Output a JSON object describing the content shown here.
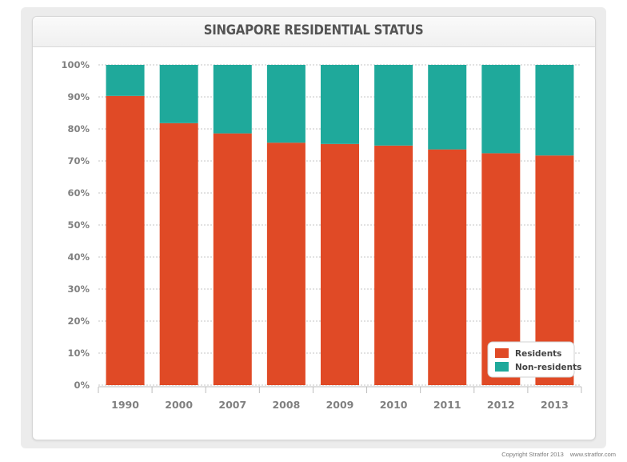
{
  "chart_data": {
    "type": "bar",
    "stacked": true,
    "title": "SINGAPORE RESIDENTIAL STATUS",
    "categories": [
      "1990",
      "2000",
      "2007",
      "2008",
      "2009",
      "2010",
      "2011",
      "2012",
      "2013"
    ],
    "series": [
      {
        "name": "Residents",
        "color": "#e04a26",
        "values": [
          90.3,
          81.8,
          78.6,
          75.7,
          75.3,
          74.8,
          73.6,
          72.4,
          71.7
        ]
      },
      {
        "name": "Non-residents",
        "color": "#1fa99b",
        "values": [
          9.7,
          18.2,
          21.4,
          24.3,
          24.7,
          25.2,
          26.4,
          27.6,
          28.3
        ]
      }
    ],
    "ylim": [
      0,
      100
    ],
    "yticks": [
      "0%",
      "10%",
      "20%",
      "30%",
      "40%",
      "50%",
      "60%",
      "70%",
      "80%",
      "90%",
      "100%"
    ],
    "grid": true,
    "legend_position": "bottom-right"
  },
  "footer": {
    "copyright": "Copyright Stratfor 2013",
    "url": "www.stratfor.com"
  }
}
